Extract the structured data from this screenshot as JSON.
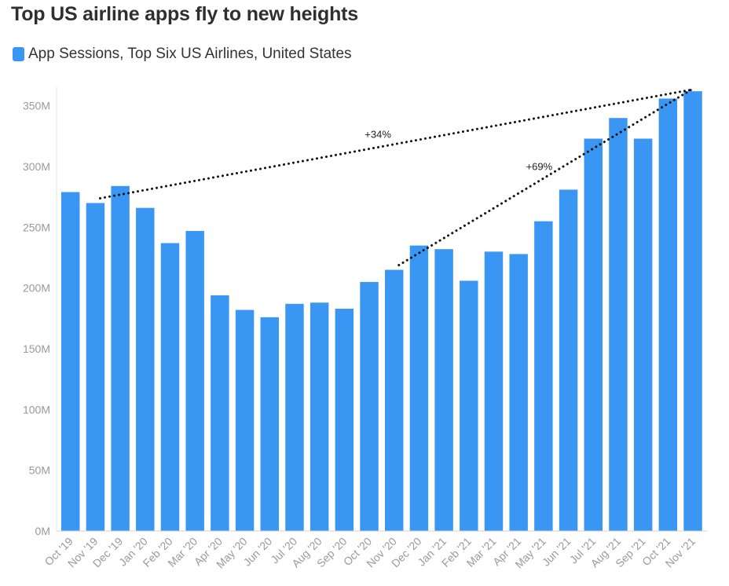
{
  "chart_data": {
    "type": "bar",
    "title": "Top US airline apps fly to new heights",
    "xlabel": "",
    "ylabel": "",
    "ylim": [
      0,
      370000000
    ],
    "yticks": [
      0,
      50000000,
      100000000,
      150000000,
      200000000,
      250000000,
      300000000,
      350000000
    ],
    "ytick_labels": [
      "0M",
      "50M",
      "100M",
      "150M",
      "200M",
      "250M",
      "300M",
      "350M"
    ],
    "grid": false,
    "legend_position": "top-left",
    "categories": [
      "Oct '19",
      "Nov '19",
      "Dec '19",
      "Jan '20",
      "Feb '20",
      "Mar '20",
      "Apr '20",
      "May '20",
      "Jun '20",
      "Jul '20",
      "Aug '20",
      "Sep '20",
      "Oct '20",
      "Nov '20",
      "Dec '20",
      "Jan '21",
      "Feb '21",
      "Mar '21",
      "Apr '21",
      "May '21",
      "Jun '21",
      "Jul '21",
      "Aug '21",
      "Sep '21",
      "Oct '21",
      "Nov '21"
    ],
    "series": [
      {
        "name": "App Sessions, Top Six US Airlines, United States",
        "color": "#3a96f3",
        "values": [
          279000000,
          270000000,
          284000000,
          266000000,
          237000000,
          247000000,
          194000000,
          182000000,
          176000000,
          187000000,
          188000000,
          183000000,
          205000000,
          215000000,
          235000000,
          232000000,
          206000000,
          230000000,
          228000000,
          255000000,
          281000000,
          323000000,
          340000000,
          323000000,
          356000000,
          362000000
        ]
      }
    ],
    "annotations": [
      {
        "text": "+34%",
        "from": {
          "x": "Nov '19",
          "y": 270000000
        },
        "to": {
          "x": "Nov '21",
          "y": 362000000
        },
        "style": "dotted"
      },
      {
        "text": "+69%",
        "from": {
          "x": "Nov '20",
          "y": 215000000
        },
        "to": {
          "x": "Nov '21",
          "y": 362000000
        },
        "style": "dotted"
      }
    ]
  }
}
